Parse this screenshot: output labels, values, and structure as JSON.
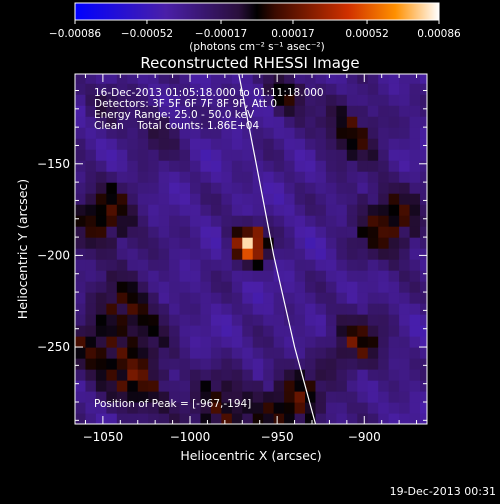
{
  "chart_data": {
    "type": "heatmap",
    "title": "Reconstructed RHESSI Image",
    "xlabel": "Heliocentric X (arcsec)",
    "ylabel": "Heliocentric Y (arcsec)",
    "xlim": [
      -1066,
      -864
    ],
    "ylim": [
      -292,
      -101
    ],
    "xticks": [
      -1050,
      -1000,
      -950,
      -900
    ],
    "yticks": [
      -150,
      -200,
      -250
    ],
    "xtick_labels": [
      "−1050",
      "−1000",
      "−950",
      "−900"
    ],
    "ytick_labels": [
      "−150",
      "−200",
      "−250"
    ],
    "colorbar": {
      "range": [
        -0.00086,
        0.00086
      ],
      "ticks": [
        -0.00086,
        -0.00052,
        -0.00017,
        0.00017,
        0.00052,
        0.00086
      ],
      "tick_labels": [
        "−0.00086",
        "−0.00052",
        "−0.00017",
        "0.00017",
        "0.00052",
        "0.00086"
      ],
      "units": "(photons cm⁻² s⁻¹ asec⁻²)"
    },
    "annotations": [
      "16-Dec-2013 01:05:18.000 to 01:11:18.000",
      "Detectors: 3F 5F 6F 7F 8F 9F, Att 0",
      "Energy Range: 25.0 - 50.0 keV",
      "Clean    Total counts: 1.86E+04"
    ],
    "peak_label": "Position of Peak = [-967,-194]",
    "peak": {
      "x": -967,
      "y": -194,
      "value": 0.00086
    },
    "limb_curve": [
      [
        -972,
        -101
      ],
      [
        -962,
        -150
      ],
      [
        -952,
        -200
      ],
      [
        -940,
        -250
      ],
      [
        -928,
        -292
      ]
    ],
    "cell_size_arcsec": 6,
    "sources": [
      {
        "x": -966,
        "y": -194,
        "amp": 0.00095,
        "sigma": 7
      },
      {
        "x": -1050,
        "y": -180,
        "amp": 0.00042,
        "sigma": 14
      },
      {
        "x": -1036,
        "y": -232,
        "amp": 0.0004,
        "sigma": 14
      },
      {
        "x": -1030,
        "y": -268,
        "amp": 0.00044,
        "sigma": 13
      },
      {
        "x": -1058,
        "y": -252,
        "amp": 0.00034,
        "sigma": 10
      },
      {
        "x": -982,
        "y": -286,
        "amp": 0.0004,
        "sigma": 14
      },
      {
        "x": -940,
        "y": -280,
        "amp": 0.00044,
        "sigma": 13
      },
      {
        "x": -904,
        "y": -248,
        "amp": 0.00038,
        "sigma": 12
      },
      {
        "x": -886,
        "y": -182,
        "amp": 0.00044,
        "sigma": 14
      },
      {
        "x": -908,
        "y": -132,
        "amp": 0.00038,
        "sigma": 12
      },
      {
        "x": -945,
        "y": -112,
        "amp": 0.0004,
        "sigma": 8
      },
      {
        "x": -1020,
        "y": -132,
        "amp": 0.00022,
        "sigma": 10
      },
      {
        "x": -1048,
        "y": -115,
        "amp": 0.00018,
        "sigma": 9
      }
    ]
  },
  "footer": {
    "timestamp": "19-Dec-2013 00:31"
  }
}
